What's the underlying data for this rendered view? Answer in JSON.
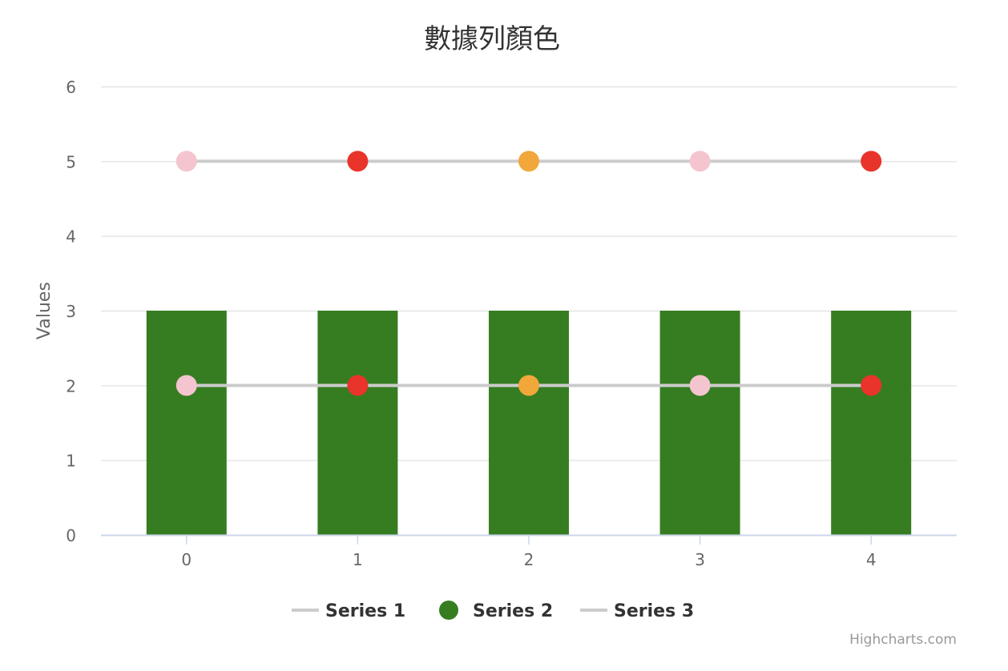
{
  "chart_data": {
    "type": "bar",
    "title": "數據列顏色",
    "xlabel": "",
    "ylabel": "Values",
    "categories": [
      "0",
      "1",
      "2",
      "3",
      "4"
    ],
    "ylim": [
      0,
      6
    ],
    "yticks": [
      "0",
      "1",
      "2",
      "3",
      "4",
      "5",
      "6"
    ],
    "grid": true,
    "legend_position": "bottom-center",
    "series": [
      {
        "name": "Series 1",
        "type": "line",
        "values": [
          2,
          2,
          2,
          2,
          2
        ],
        "line_color": "#cccccc",
        "point_colors": [
          "#f4c5cf",
          "#e8342a",
          "#f2a73b",
          "#f4c5cf",
          "#e8342a"
        ]
      },
      {
        "name": "Series 2",
        "type": "bar",
        "values": [
          3,
          3,
          3,
          3,
          3
        ],
        "color": "#367d22"
      },
      {
        "name": "Series 3",
        "type": "line",
        "values": [
          5,
          5,
          5,
          5,
          5
        ],
        "line_color": "#cccccc",
        "point_colors": [
          "#f4c5cf",
          "#e8342a",
          "#f2a73b",
          "#f4c5cf",
          "#e8342a"
        ]
      }
    ]
  },
  "credits": "Highcharts.com",
  "colors": {
    "grid": "#e6e6e6",
    "axis_line": "#ccd6eb",
    "tick_label": "#666666",
    "title": "#333333",
    "legend_text": "#333333",
    "credits": "#999999"
  }
}
